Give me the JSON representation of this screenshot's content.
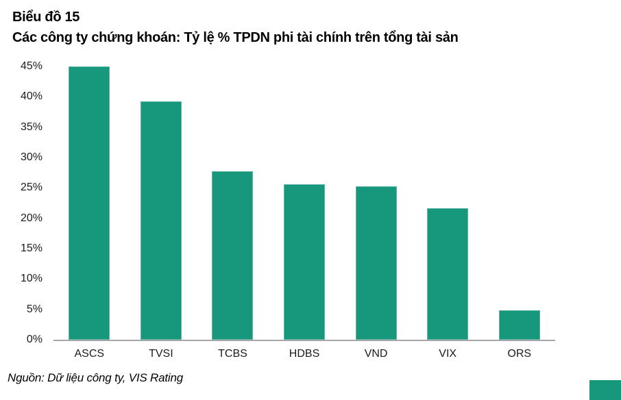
{
  "header": {
    "title": "Biểu đồ 15",
    "subtitle": "Các công ty chứng khoán: Tỷ lệ % TPDN phi tài chính trên tổng tài sản"
  },
  "footer": {
    "source": "Nguồn: Dữ liệu công ty, VIS Rating"
  },
  "colors": {
    "bar_fill": "#17987D",
    "bar_edge": "#5fb6a2",
    "axis_line": "#a6a6a6",
    "text": "#000000",
    "corner_square": "#17987D"
  },
  "chart_data": {
    "type": "bar",
    "title": "Các công ty chứng khoán: Tỷ lệ % TPDN phi tài chính trên tổng tài sản",
    "categories": [
      "ASCS",
      "TVSI",
      "TCBS",
      "HDBS",
      "VND",
      "VIX",
      "ORS"
    ],
    "values": [
      45,
      39.2,
      27.7,
      25.6,
      25.3,
      21.6,
      4.8
    ],
    "xlabel": "",
    "ylabel": "",
    "ylim": [
      0,
      45
    ],
    "ytick_step": 5,
    "ytick_labels": [
      "45%",
      "40%",
      "35%",
      "30%",
      "25%",
      "20%",
      "15%",
      "10%",
      "5%",
      "0%"
    ],
    "grid": false,
    "legend": false,
    "bar_color": "#17987D"
  },
  "decorations": {
    "corner_square": true
  }
}
